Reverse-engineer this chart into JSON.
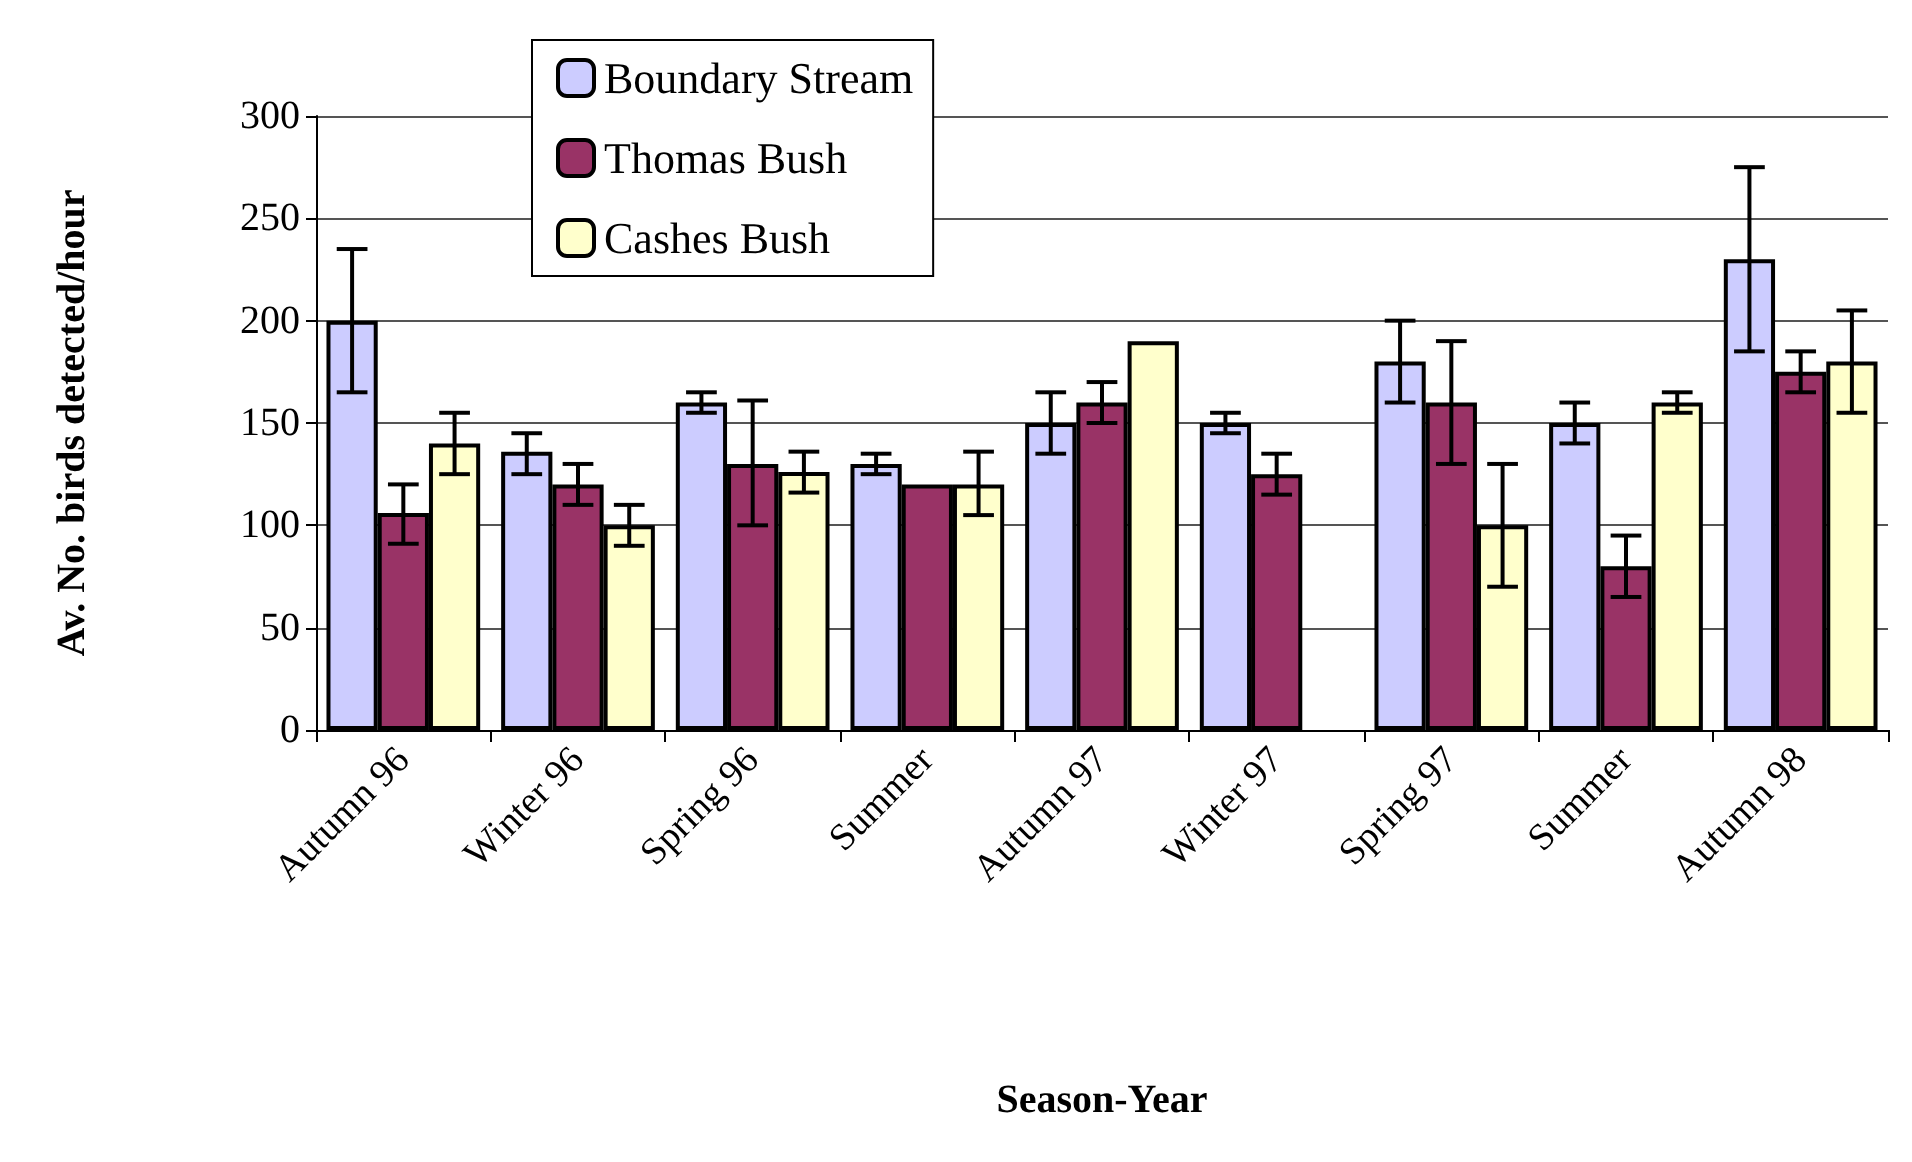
{
  "chart_data": {
    "type": "bar",
    "xlabel": "Season-Year",
    "ylabel": "Av. No. birds detected/hour",
    "categories": [
      "Autumn 96",
      "Winter 96",
      "Spring 96",
      "Summer",
      "Autumn 97",
      "Winter 97",
      "Spring 97",
      "Summer",
      "Autumn 98"
    ],
    "series": [
      {
        "name": "Boundary Stream",
        "color": "#ccccff",
        "values": [
          200,
          136,
          160,
          130,
          150,
          150,
          180,
          150,
          230
        ],
        "errors": [
          [
            165,
            235
          ],
          [
            125,
            145
          ],
          [
            155,
            165
          ],
          [
            125,
            135
          ],
          [
            135,
            165
          ],
          [
            145,
            155
          ],
          [
            160,
            200
          ],
          [
            140,
            160
          ],
          [
            185,
            275
          ]
        ]
      },
      {
        "name": "Thomas Bush",
        "color": "#993366",
        "values": [
          106,
          120,
          130,
          120,
          160,
          125,
          160,
          80,
          175
        ],
        "errors": [
          [
            91,
            120
          ],
          [
            110,
            130
          ],
          [
            100,
            161
          ],
          null,
          [
            150,
            170
          ],
          [
            115,
            135
          ],
          [
            130,
            190
          ],
          [
            65,
            95
          ],
          [
            165,
            185
          ]
        ]
      },
      {
        "name": "Cashes Bush",
        "color": "#ffffcc",
        "values": [
          140,
          100,
          126,
          120,
          190,
          null,
          100,
          160,
          180
        ],
        "errors": [
          [
            125,
            155
          ],
          [
            90,
            110
          ],
          [
            116,
            136
          ],
          [
            105,
            136
          ],
          null,
          null,
          [
            70,
            130
          ],
          [
            155,
            165
          ],
          [
            155,
            205
          ]
        ]
      }
    ],
    "ylim": [
      0,
      300
    ],
    "yticks": [
      0,
      50,
      100,
      150,
      200,
      250,
      300
    ],
    "grid": "y",
    "legend": "top"
  }
}
